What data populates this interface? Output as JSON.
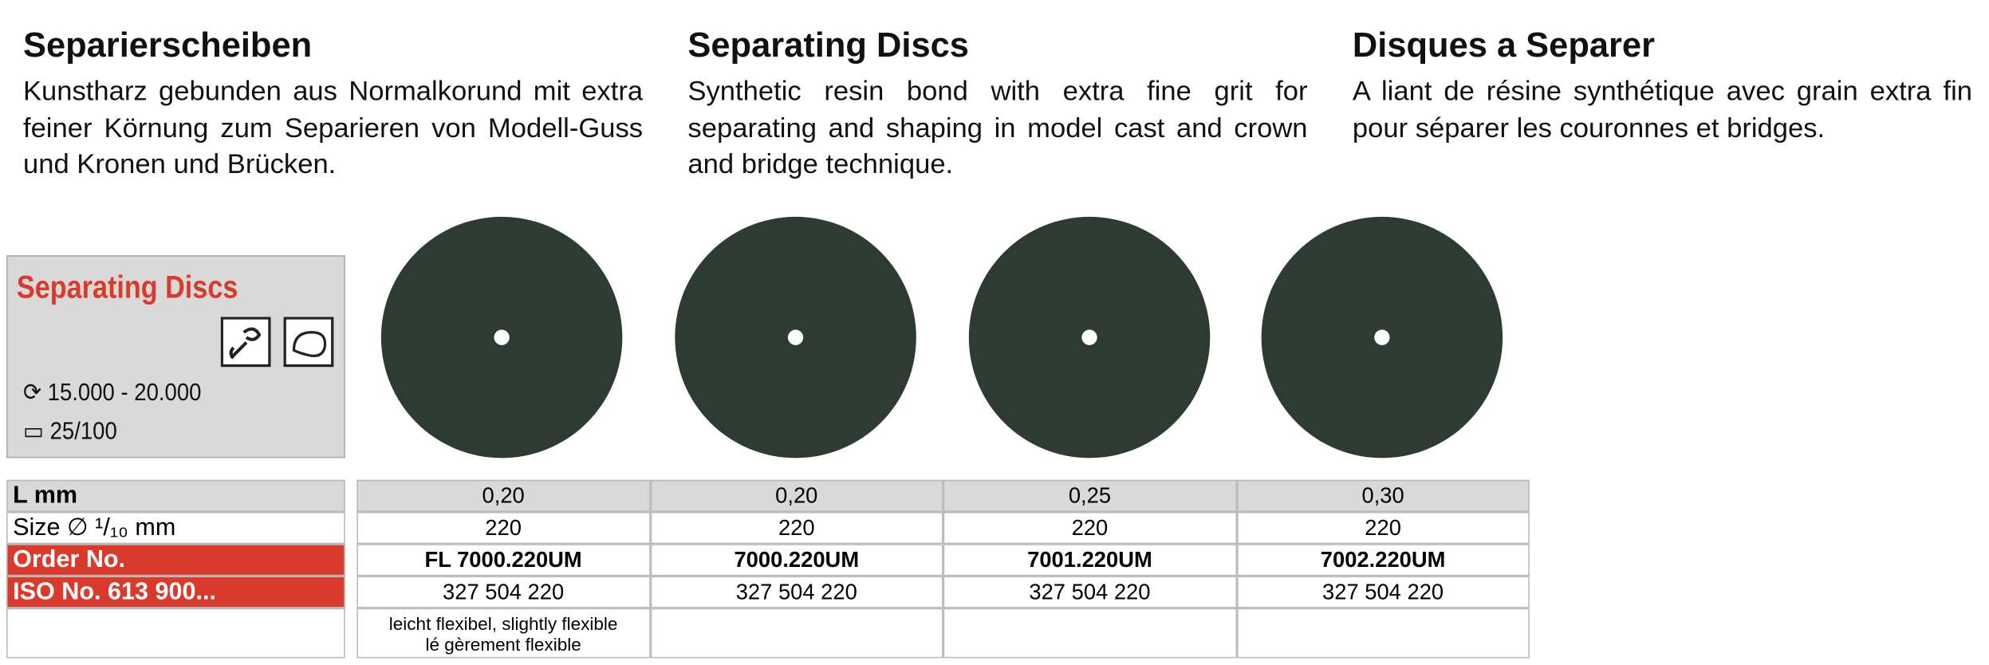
{
  "columns": [
    {
      "title": "Separierscheiben",
      "text": "Kunstharz gebunden aus Normalkorund mit extra feiner Körnung zum Separieren von Modell-Guss und Kronen und Brücken."
    },
    {
      "title": "Separating Discs",
      "text": "Synthetic resin bond with extra fine grit for separating and shaping in model cast and crown and bridge technique."
    },
    {
      "title": "Disques a Separer",
      "text": "A liant de résine synthétique avec grain extra fin pour séparer les couronnes et bridges."
    }
  ],
  "product_box": {
    "title": "Separating Discs",
    "speed": "15.000 - 20.000",
    "pack": "25/100"
  },
  "table": {
    "row_labels": [
      "L mm",
      "Size ∅ ¹/₁₀ mm",
      "Order No.",
      "ISO No. 613 900..."
    ],
    "products": [
      {
        "l": "0,20",
        "size": "220",
        "order": "FL 7000.220UM",
        "iso": "327 504 220",
        "note": [
          "leicht flexibel, slightly flexible",
          "lé gèrement flexible"
        ]
      },
      {
        "l": "0,20",
        "size": "220",
        "order": "7000.220UM",
        "iso": "327 504 220"
      },
      {
        "l": "0,25",
        "size": "220",
        "order": "7001.220UM",
        "iso": "327 504 220"
      },
      {
        "l": "0,30",
        "size": "220",
        "order": "7002.220UM",
        "iso": "327 504 220"
      }
    ]
  }
}
